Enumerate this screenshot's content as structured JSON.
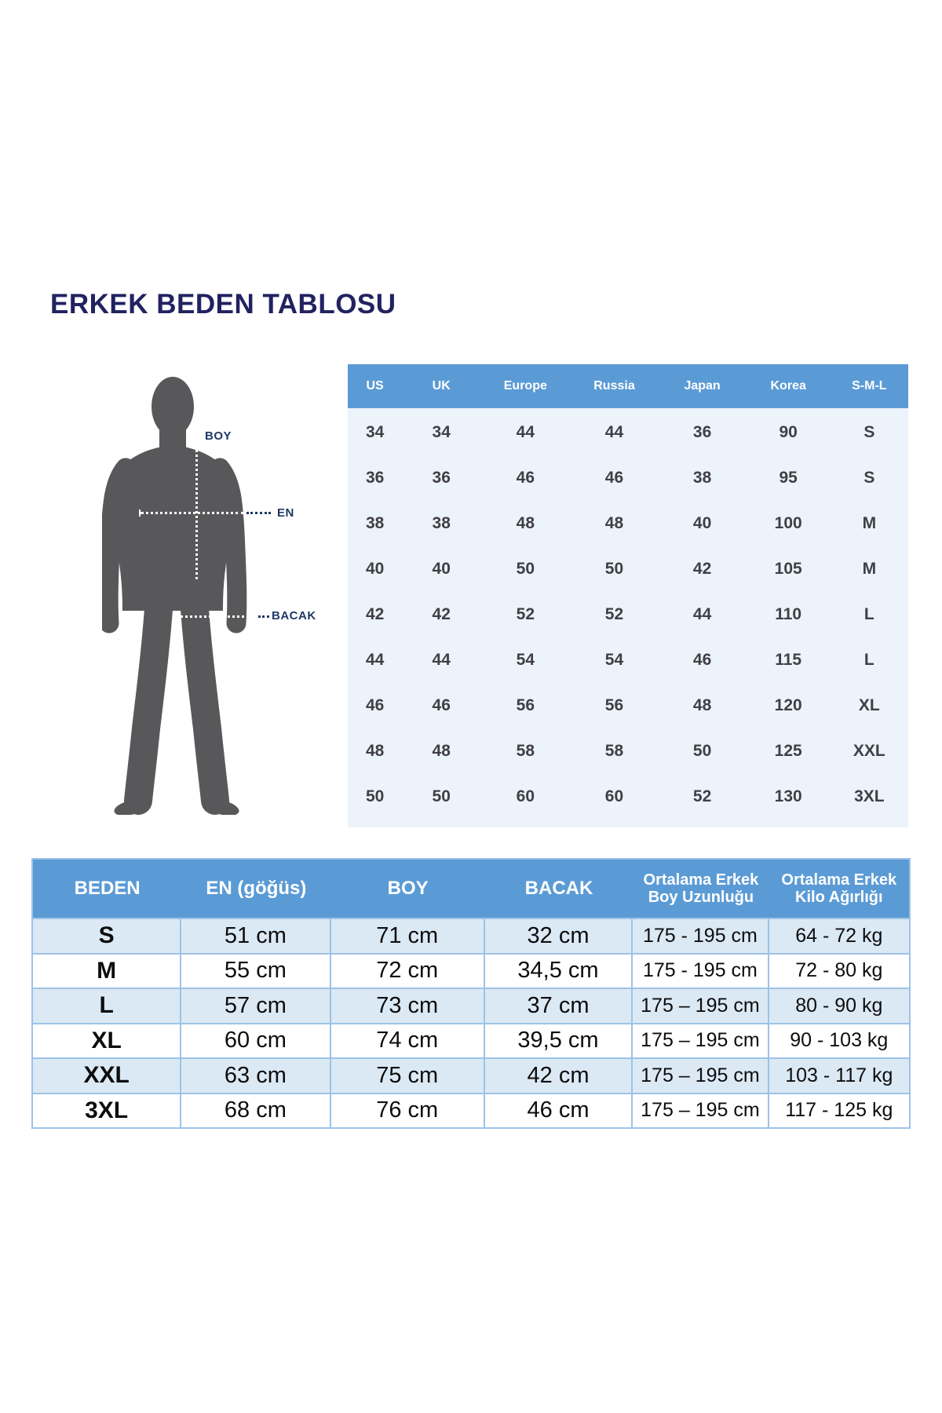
{
  "title": "ERKEK BEDEN TABLOSU",
  "figure": {
    "labels": {
      "height": "BOY",
      "chest": "EN",
      "leg": "BACAK"
    }
  },
  "intl_table": {
    "headers": [
      "US",
      "UK",
      "Europe",
      "Russia",
      "Japan",
      "Korea",
      "S-M-L"
    ],
    "rows": [
      [
        "34",
        "34",
        "44",
        "44",
        "36",
        "90",
        "S"
      ],
      [
        "36",
        "36",
        "46",
        "46",
        "38",
        "95",
        "S"
      ],
      [
        "38",
        "38",
        "48",
        "48",
        "40",
        "100",
        "M"
      ],
      [
        "40",
        "40",
        "50",
        "50",
        "42",
        "105",
        "M"
      ],
      [
        "42",
        "42",
        "52",
        "52",
        "44",
        "110",
        "L"
      ],
      [
        "44",
        "44",
        "54",
        "54",
        "46",
        "115",
        "L"
      ],
      [
        "46",
        "46",
        "56",
        "56",
        "48",
        "120",
        "XL"
      ],
      [
        "48",
        "48",
        "58",
        "58",
        "50",
        "125",
        "XXL"
      ],
      [
        "50",
        "50",
        "60",
        "60",
        "52",
        "130",
        "3XL"
      ]
    ]
  },
  "size_table": {
    "header_lines": [
      [
        "BEDEN"
      ],
      [
        "EN (göğüs)"
      ],
      [
        "BOY"
      ],
      [
        "BACAK"
      ],
      [
        "Ortalama Erkek",
        "Boy Uzunluğu"
      ],
      [
        "Ortalama Erkek",
        "Kilo Ağırlığı"
      ]
    ],
    "rows": [
      [
        "S",
        "51 cm",
        "71 cm",
        "32 cm",
        "175 - 195 cm",
        "64 - 72 kg"
      ],
      [
        "M",
        "55 cm",
        "72 cm",
        "34,5 cm",
        "175 - 195 cm",
        "72 - 80 kg"
      ],
      [
        "L",
        "57 cm",
        "73 cm",
        "37 cm",
        "175 – 195 cm",
        "80 - 90 kg"
      ],
      [
        "XL",
        "60 cm",
        "74 cm",
        "39,5 cm",
        "175 – 195 cm",
        "90 - 103 kg"
      ],
      [
        "XXL",
        "63 cm",
        "75 cm",
        "42 cm",
        "175 – 195 cm",
        "103 - 117 kg"
      ],
      [
        "3XL",
        "68 cm",
        "76 cm",
        "46 cm",
        "175 – 195 cm",
        "117 - 125 kg"
      ]
    ]
  },
  "colors": {
    "header-blue": "#5b9bd5",
    "table-bg": "#edf3fa",
    "row-blue": "#dbe9f5",
    "grid-blue": "#9dc3e6",
    "navy-title": "#212260",
    "navy-label": "#1f3864",
    "silhouette-gray": "#58585a"
  }
}
